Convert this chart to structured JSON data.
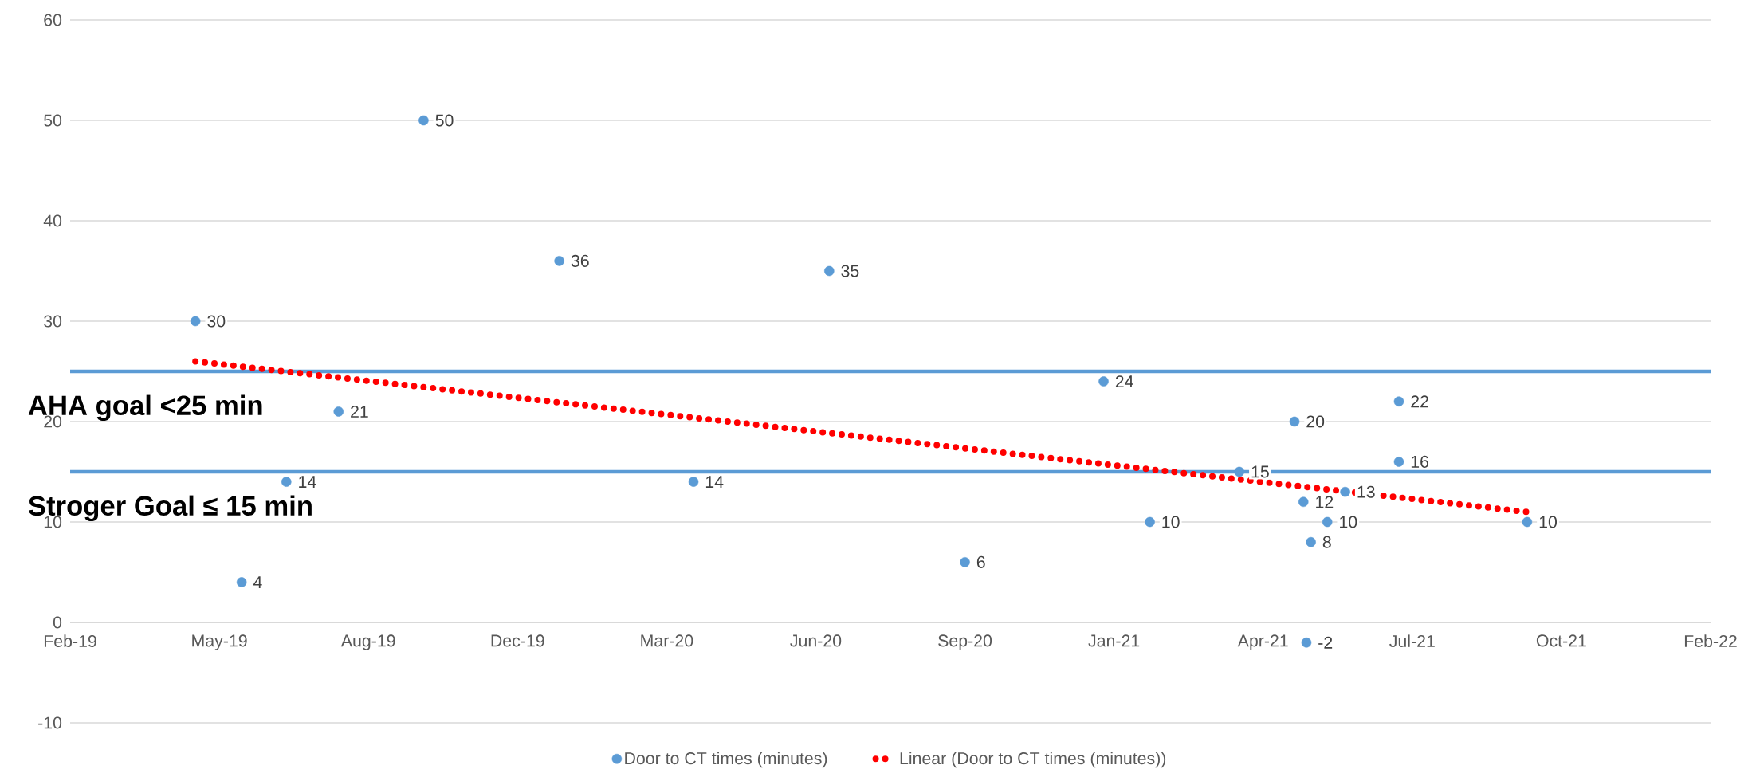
{
  "chart_data": {
    "type": "scatter",
    "xlim": [
      "2019-02-04",
      "2022-02-08"
    ],
    "xticks": [
      {
        "value": "2019-02-04",
        "label": "Feb-19"
      },
      {
        "value": "2019-05-15",
        "label": "May-19"
      },
      {
        "value": "2019-08-23",
        "label": "Aug-19"
      },
      {
        "value": "2019-12-01",
        "label": "Dec-19"
      },
      {
        "value": "2020-03-10",
        "label": "Mar-20"
      },
      {
        "value": "2020-06-18",
        "label": "Jun-20"
      },
      {
        "value": "2020-09-26",
        "label": "Sep-20"
      },
      {
        "value": "2021-01-04",
        "label": "Jan-21"
      },
      {
        "value": "2021-04-14",
        "label": "Apr-21"
      },
      {
        "value": "2021-07-23",
        "label": "Jul-21"
      },
      {
        "value": "2021-10-31",
        "label": "Oct-21"
      },
      {
        "value": "2022-02-08",
        "label": "Feb-22"
      }
    ],
    "ylim": [
      -10,
      60
    ],
    "yticks": [
      -10,
      0,
      10,
      20,
      30,
      40,
      50,
      60
    ],
    "grid": "y",
    "legend": "bottom",
    "marker": "circle",
    "series": [
      {
        "name": "Door to CT times (minutes)",
        "color": "#5b9bd5",
        "value_labels": [
          "30",
          "4",
          "14",
          "21",
          "50",
          "36",
          "14",
          "35",
          "6",
          "24",
          "10",
          "15",
          "20",
          "12",
          "-2",
          "8",
          "10",
          "13",
          "22",
          "16",
          "10"
        ],
        "x": [
          "2019-04-29",
          "2019-05-30",
          "2019-06-29",
          "2019-08-03",
          "2019-09-29",
          "2019-12-29",
          "2020-03-28",
          "2020-06-27",
          "2020-09-26",
          "2020-12-28",
          "2021-01-28",
          "2021-03-29",
          "2021-05-05",
          "2021-05-11",
          "2021-05-13",
          "2021-05-16",
          "2021-05-27",
          "2021-06-08",
          "2021-07-14",
          "2021-07-14",
          "2021-10-08"
        ],
        "values": [
          30,
          4,
          14,
          21,
          50,
          36,
          14,
          35,
          6,
          24,
          10,
          15,
          20,
          12,
          -2,
          8,
          10,
          13,
          22,
          16,
          10
        ]
      },
      {
        "name": "Linear (Door to CT times (minutes))",
        "type": "line",
        "marker": "none",
        "line_style": "dotted",
        "color": "#ff0000",
        "x": [
          "2019-04-29",
          "2021-10-08"
        ],
        "values": [
          26,
          11
        ]
      }
    ],
    "ref_lines": [
      {
        "axis": "y",
        "value": 25,
        "label": "AHA goal <25 min",
        "color": "#5b9bd5"
      },
      {
        "axis": "y",
        "value": 15,
        "label": "Stroger Goal ≤ 15 min",
        "color": "#5b9bd5"
      }
    ]
  }
}
